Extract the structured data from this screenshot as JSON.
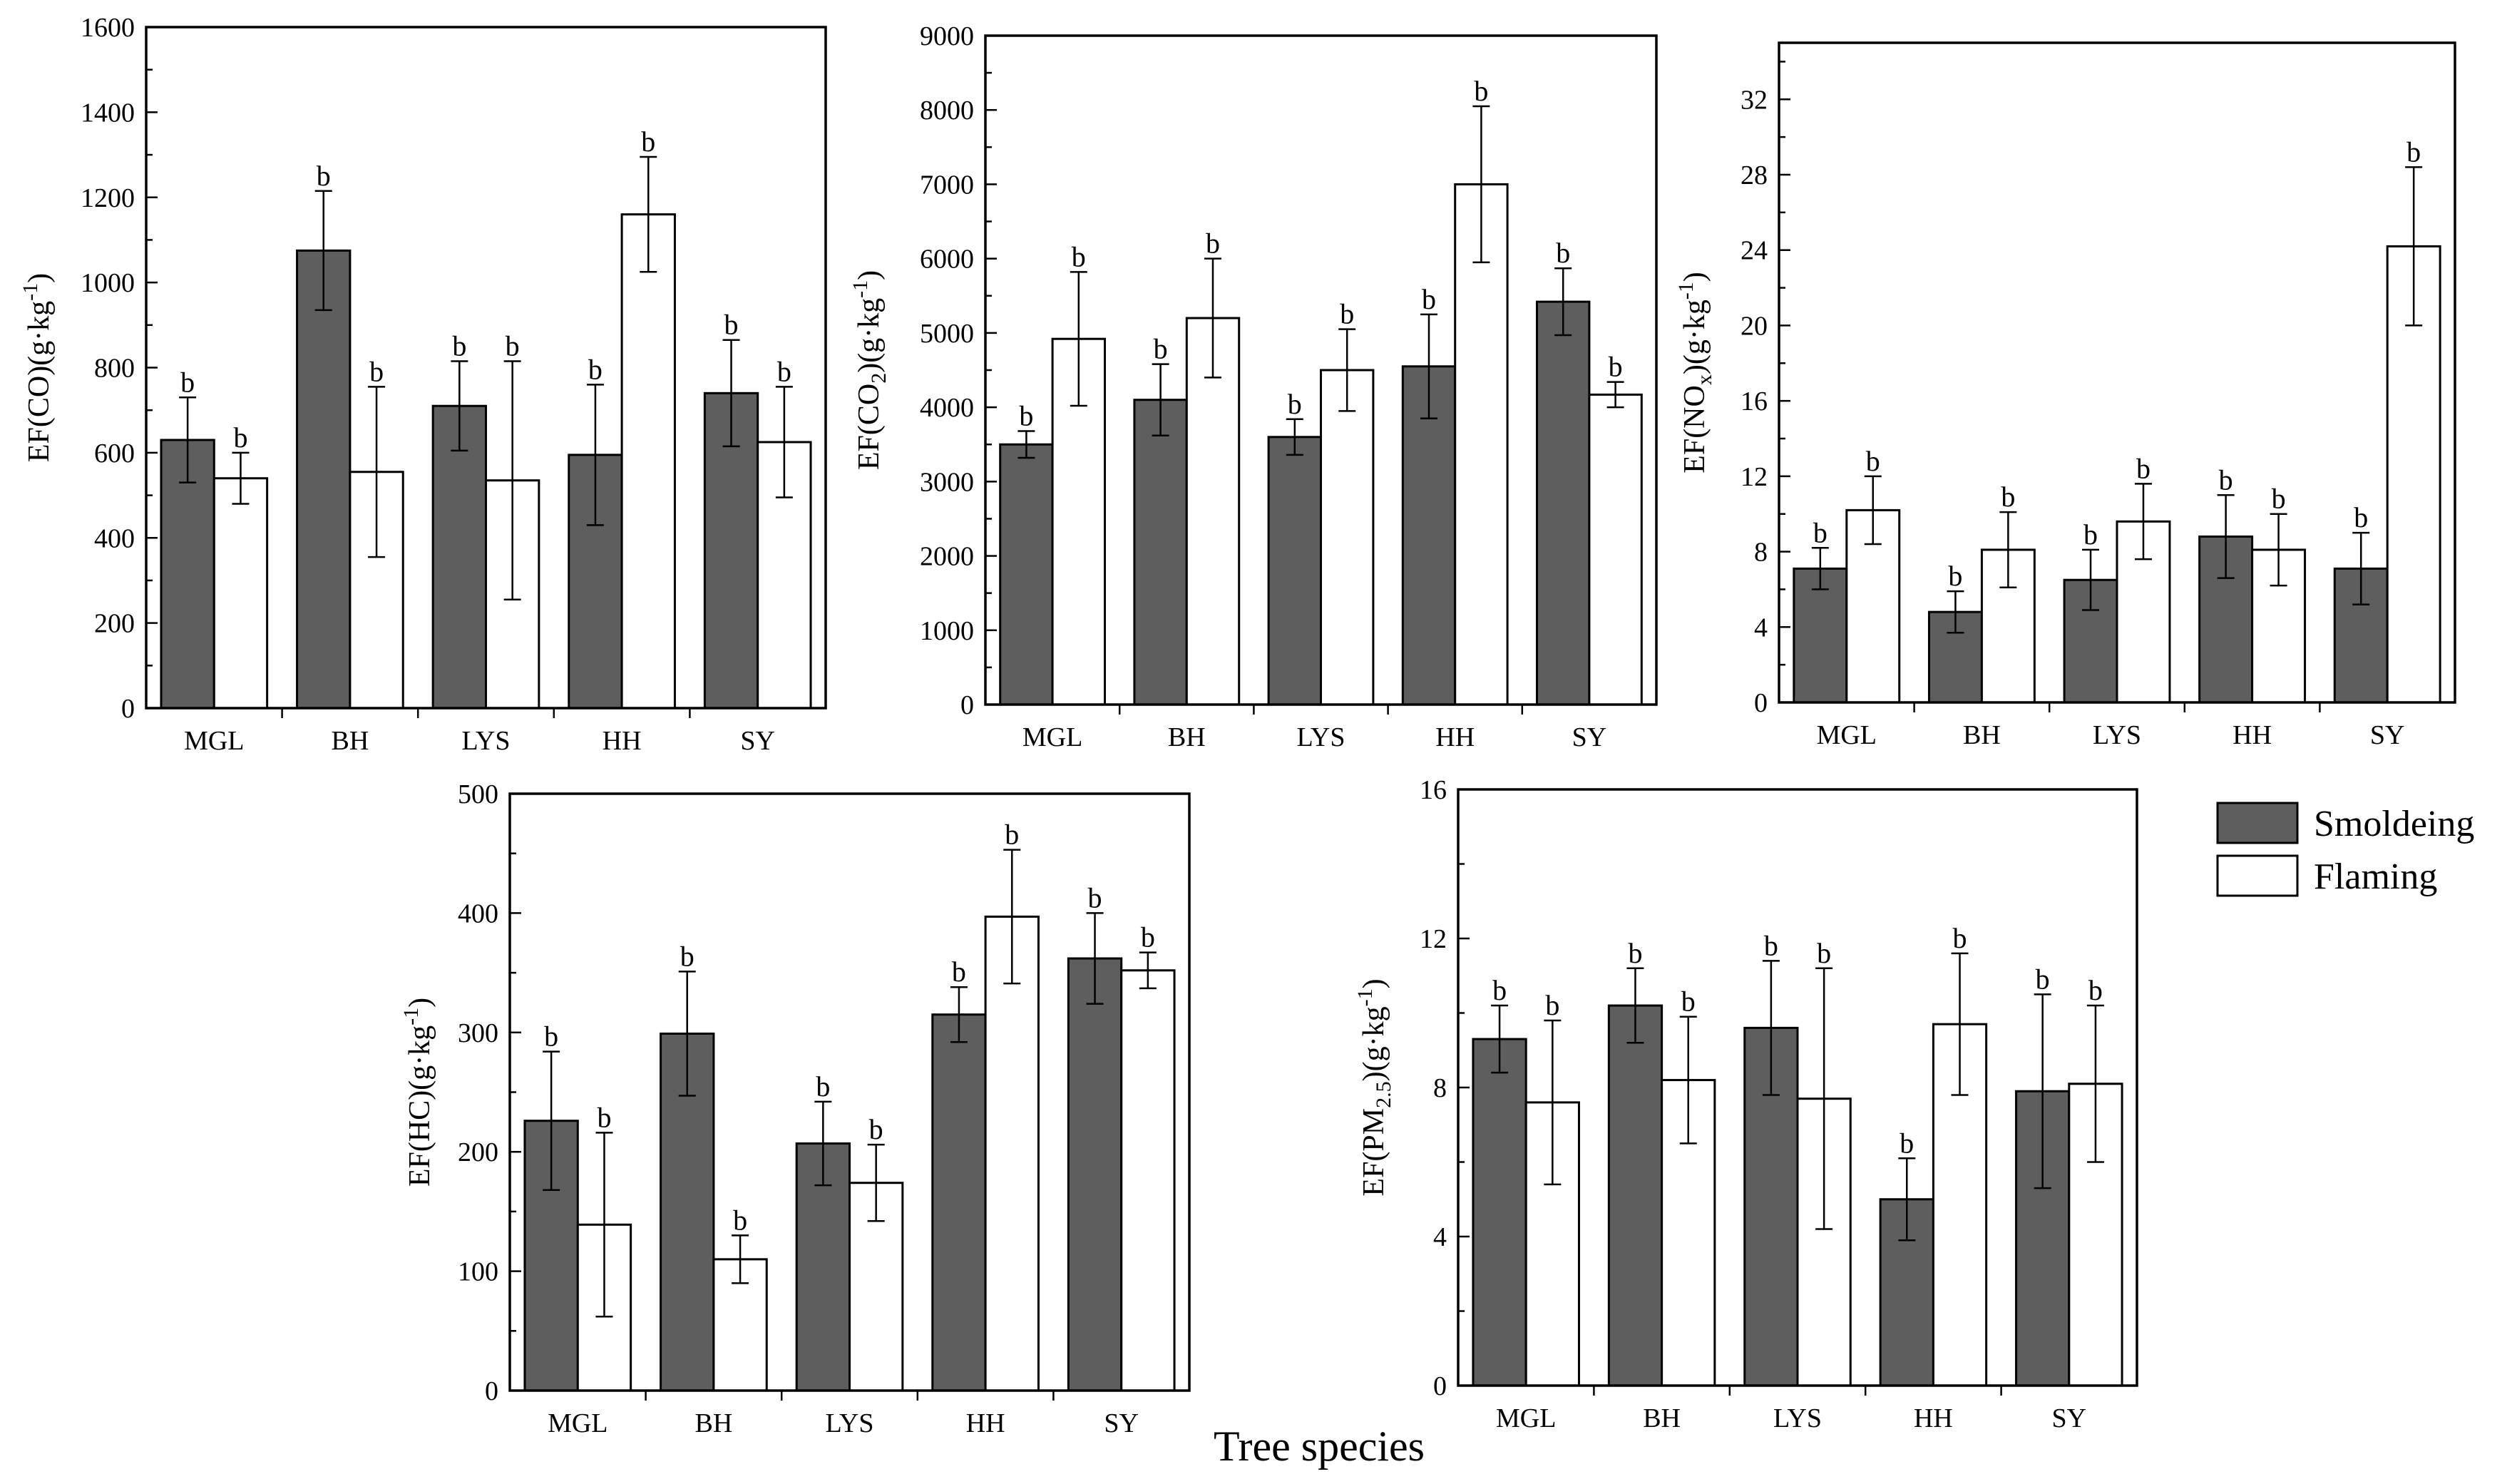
{
  "colors": {
    "smoldering": "#5e5e5e",
    "flaming": "#ffffff",
    "axis": "#000000"
  },
  "legend": {
    "placement": "right",
    "items": [
      "Smoldeing",
      "Flaming"
    ]
  },
  "figure_xlabel": "Tree species",
  "chart_data": [
    {
      "type": "bar",
      "ylabel": {
        "base": "EF(CO)",
        "sub": "",
        "unit": "(g·kg",
        "sup": "-1",
        "close": ")"
      },
      "categories": [
        "MGL",
        "BH",
        "LYS",
        "HH",
        "SY"
      ],
      "ylim": [
        0,
        1600
      ],
      "yticks": [
        "0",
        "200",
        "400",
        "600",
        "800",
        "1000",
        "1200",
        "1400",
        "1600"
      ],
      "series": [
        {
          "name": "Smoldeing",
          "values": [
            630,
            1075,
            710,
            595,
            740
          ],
          "errors": [
            100,
            140,
            105,
            165,
            125
          ],
          "labels": [
            "b",
            "b",
            "b",
            "b",
            "b"
          ]
        },
        {
          "name": "Flaming",
          "values": [
            540,
            555,
            535,
            1160,
            625
          ],
          "errors": [
            60,
            200,
            280,
            135,
            130
          ],
          "labels": [
            "b",
            "b",
            "b",
            "b",
            "b"
          ]
        }
      ]
    },
    {
      "type": "bar",
      "ylabel": {
        "base": "EF(CO",
        "sub": "2",
        "unit": ")(g·kg",
        "sup": "-1",
        "close": ")"
      },
      "categories": [
        "MGL",
        "BH",
        "LYS",
        "HH",
        "SY"
      ],
      "ylim": [
        0,
        9000
      ],
      "yticks": [
        "0",
        "1000",
        "2000",
        "3000",
        "4000",
        "5000",
        "6000",
        "7000",
        "8000",
        "9000"
      ],
      "series": [
        {
          "name": "Smoldeing",
          "values": [
            3500,
            4100,
            3600,
            4550,
            5420
          ],
          "errors": [
            180,
            480,
            240,
            700,
            450
          ],
          "labels": [
            "b",
            "b",
            "b",
            "b",
            "b"
          ]
        },
        {
          "name": "Flaming",
          "values": [
            4920,
            5200,
            4500,
            7000,
            4170
          ],
          "errors": [
            900,
            800,
            550,
            1050,
            170
          ],
          "labels": [
            "b",
            "b",
            "b",
            "b",
            "b"
          ]
        }
      ]
    },
    {
      "type": "bar",
      "ylabel": {
        "base": "EF(NO",
        "sub": "x",
        "unit": ")(g·kg",
        "sup": "-1",
        "close": ")"
      },
      "categories": [
        "MGL",
        "BH",
        "LYS",
        "HH",
        "SY"
      ],
      "ylim": [
        0,
        35
      ],
      "yticks": [
        "0",
        "4",
        "8",
        "12",
        "16",
        "20",
        "24",
        "28",
        "32"
      ],
      "series": [
        {
          "name": "Smoldeing",
          "values": [
            7.1,
            4.8,
            6.5,
            8.8,
            7.1
          ],
          "errors": [
            1.1,
            1.1,
            1.6,
            2.2,
            1.9
          ],
          "labels": [
            "b",
            "b",
            "b",
            "b",
            "b"
          ]
        },
        {
          "name": "Flaming",
          "values": [
            10.2,
            8.1,
            9.6,
            8.1,
            24.2
          ],
          "errors": [
            1.8,
            2.0,
            2.0,
            1.9,
            4.2
          ],
          "labels": [
            "b",
            "b",
            "b",
            "b",
            "b"
          ]
        }
      ]
    },
    {
      "type": "bar",
      "ylabel": {
        "base": "EF(HC)",
        "sub": "",
        "unit": "(g·kg",
        "sup": "-1",
        "close": ")"
      },
      "categories": [
        "MGL",
        "BH",
        "LYS",
        "HH",
        "SY"
      ],
      "ylim": [
        0,
        500
      ],
      "yticks": [
        "0",
        "100",
        "200",
        "300",
        "400",
        "500"
      ],
      "series": [
        {
          "name": "Smoldeing",
          "values": [
            226,
            299,
            207,
            315,
            362
          ],
          "errors": [
            58,
            52,
            35,
            23,
            38
          ],
          "labels": [
            "b",
            "b",
            "b",
            "b",
            "b"
          ]
        },
        {
          "name": "Flaming",
          "values": [
            139,
            110,
            174,
            397,
            352
          ],
          "errors": [
            77,
            20,
            32,
            56,
            15
          ],
          "labels": [
            "b",
            "b",
            "b",
            "b",
            "b"
          ]
        }
      ]
    },
    {
      "type": "bar",
      "ylabel": {
        "base": "EF(PM",
        "sub": "2.5",
        "unit": ")(g·kg",
        "sup": "-1",
        "close": ")"
      },
      "categories": [
        "MGL",
        "BH",
        "LYS",
        "HH",
        "SY"
      ],
      "ylim": [
        0,
        16
      ],
      "yticks": [
        "0",
        "4",
        "8",
        "12",
        "16"
      ],
      "series": [
        {
          "name": "Smoldeing",
          "values": [
            9.3,
            10.2,
            9.6,
            5.0,
            7.9
          ],
          "errors": [
            0.9,
            1.0,
            1.8,
            1.1,
            2.6
          ],
          "labels": [
            "b",
            "b",
            "b",
            "b",
            "b"
          ]
        },
        {
          "name": "Flaming",
          "values": [
            7.6,
            8.2,
            7.7,
            9.7,
            8.1
          ],
          "errors": [
            2.2,
            1.7,
            3.5,
            1.9,
            2.1
          ],
          "labels": [
            "b",
            "b",
            "b",
            "b",
            "b"
          ]
        }
      ]
    }
  ]
}
